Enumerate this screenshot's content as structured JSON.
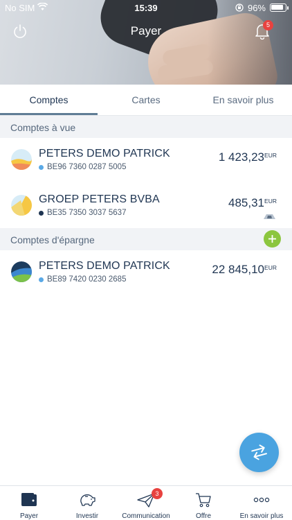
{
  "status_bar": {
    "carrier": "No SIM",
    "time": "15:39",
    "battery": "96%"
  },
  "header": {
    "title": "Payer",
    "notification_count": "5"
  },
  "tabs": [
    {
      "label": "Comptes"
    },
    {
      "label": "Cartes"
    },
    {
      "label": "En savoir plus"
    }
  ],
  "sections": {
    "current": {
      "title": "Comptes à vue"
    },
    "savings": {
      "title": "Comptes d'épargne",
      "add_icon": "plus-icon"
    }
  },
  "accounts": [
    {
      "name": "PETERS DEMO PATRICK",
      "iban": "BE96 7360 0287 5005",
      "amount": "1 423,23",
      "currency": "EUR",
      "dot_color": "#5aa9e6"
    },
    {
      "name": "GROEP PETERS BVBA",
      "iban": "BE35 7350 3037 5637",
      "amount": "485,31",
      "currency": "EUR",
      "dot_color": "#1f3552"
    },
    {
      "name": "PETERS DEMO PATRICK",
      "iban": "BE89 7420 0230 2685",
      "amount": "22 845,10",
      "currency": "EUR",
      "dot_color": "#5aa9e6"
    }
  ],
  "fab": {
    "icon": "transfer-arrows-icon"
  },
  "bottom_nav": [
    {
      "label": "Payer",
      "icon": "wallet-icon"
    },
    {
      "label": "Investir",
      "icon": "piggy-bank-icon"
    },
    {
      "label": "Communication",
      "icon": "paper-plane-icon",
      "badge": "3"
    },
    {
      "label": "Offre",
      "icon": "cart-icon"
    },
    {
      "label": "En savoir plus",
      "icon": "more-dots-icon"
    }
  ]
}
